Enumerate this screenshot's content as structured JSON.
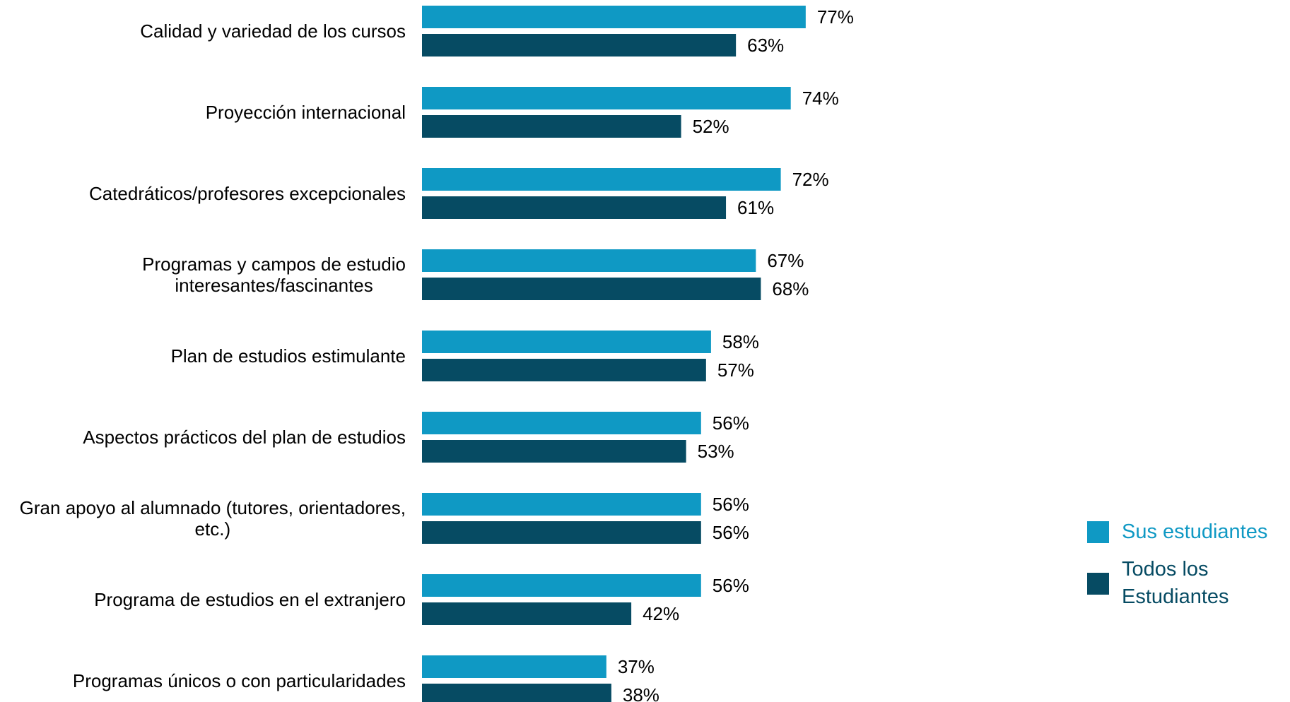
{
  "chart_data": {
    "type": "bar",
    "orientation": "horizontal",
    "categories": [
      "Calidad y variedad de los cursos",
      "Proyección internacional",
      "Catedráticos/profesores excepcionales",
      "Programas y campos de estudio interesantes/fascinantes",
      "Plan de estudios estimulante",
      "Aspectos prácticos del plan de estudios",
      "Gran apoyo al alumnado (tutores, orientadores, etc.)",
      "Programa de estudios en el extranjero",
      "Programas únicos o con particularidades"
    ],
    "category_lines": [
      [
        "Calidad y variedad de los cursos"
      ],
      [
        "Proyección internacional"
      ],
      [
        "Catedráticos/profesores excepcionales"
      ],
      [
        "Programas y campos de estudio",
        "interesantes/fascinantes"
      ],
      [
        "Plan de estudios estimulante"
      ],
      [
        "Aspectos prácticos del plan de estudios"
      ],
      [
        "Gran apoyo al alumnado (tutores, orientadores,",
        "etc.)"
      ],
      [
        "Programa de estudios en el extranjero"
      ],
      [
        "Programas únicos o con particularidades"
      ]
    ],
    "series": [
      {
        "name": "Sus estudiantes",
        "color": "#0f99c4",
        "values": [
          77,
          74,
          72,
          67,
          58,
          56,
          56,
          56,
          37
        ],
        "labels": [
          "77%",
          "74%",
          "72%",
          "67%",
          "58%",
          "56%",
          "56%",
          "56%",
          "37%"
        ]
      },
      {
        "name": "Todos los Estudiantes",
        "legend_lines": [
          "Todos los",
          "Estudiantes"
        ],
        "color": "#064b63",
        "values": [
          63,
          52,
          61,
          68,
          57,
          53,
          56,
          42,
          38
        ],
        "labels": [
          "63%",
          "52%",
          "61%",
          "68%",
          "57%",
          "53%",
          "56%",
          "42%",
          "38%"
        ]
      }
    ],
    "value_unit": "%",
    "xlim": [
      0,
      100
    ],
    "grid": false,
    "legend_position": "right",
    "title": "",
    "xlabel": "",
    "ylabel": ""
  }
}
